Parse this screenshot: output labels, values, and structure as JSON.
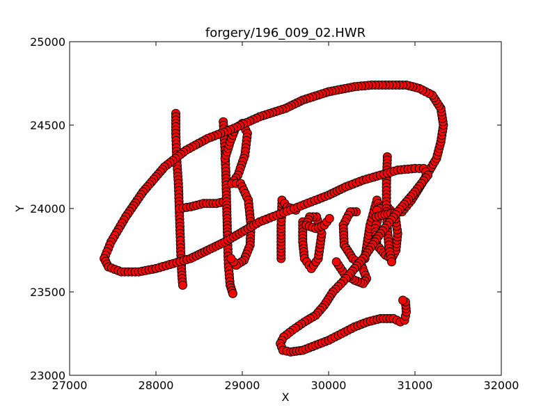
{
  "chart_data": {
    "type": "line",
    "title": "forgery/196_009_02.HWR",
    "xlabel": "X",
    "ylabel": "Y",
    "xlim": [
      27000,
      32000
    ],
    "ylim": [
      23000,
      25000
    ],
    "xticks": [
      "27000",
      "28000",
      "29000",
      "30000",
      "31000",
      "32000"
    ],
    "yticks": [
      "23000",
      "23500",
      "24000",
      "24500",
      "25000"
    ],
    "grid": false,
    "legend": "none",
    "series": [
      {
        "line_color": "#ff0000",
        "marker_face": "#ff0000",
        "marker_edge": "#000000",
        "marker": "circle",
        "strokes": [
          [
            [
              28230,
              24570
            ],
            [
              28230,
              24450
            ],
            [
              28240,
              24300
            ],
            [
              28260,
              24150
            ],
            [
              28270,
              24000
            ],
            [
              28280,
              23850
            ],
            [
              28290,
              23700
            ],
            [
              28300,
              23600
            ],
            [
              28310,
              23540
            ]
          ],
          [
            [
              28270,
              24000
            ],
            [
              28400,
              24010
            ],
            [
              28550,
              24030
            ],
            [
              28700,
              24030
            ],
            [
              28780,
              24040
            ]
          ],
          [
            [
              28780,
              24520
            ],
            [
              28800,
              24350
            ],
            [
              28810,
              24200
            ],
            [
              28820,
              24000
            ],
            [
              28830,
              23800
            ],
            [
              28840,
              23650
            ],
            [
              28860,
              23540
            ],
            [
              28890,
              23490
            ]
          ],
          [
            [
              28800,
              24300
            ],
            [
              28860,
              24400
            ],
            [
              28920,
              24480
            ],
            [
              29000,
              24510
            ],
            [
              29060,
              24450
            ],
            [
              29030,
              24320
            ],
            [
              28950,
              24200
            ],
            [
              28880,
              24150
            ],
            [
              28980,
              24150
            ],
            [
              29070,
              24050
            ],
            [
              29100,
              23900
            ],
            [
              29090,
              23780
            ],
            [
              29020,
              23690
            ],
            [
              28930,
              23660
            ],
            [
              28870,
              23700
            ]
          ],
          [
            [
              29450,
              23700
            ],
            [
              29450,
              23900
            ],
            [
              29460,
              24050
            ],
            [
              29520,
              24010
            ],
            [
              29620,
              23990
            ]
          ],
          [
            [
              29700,
              23920
            ],
            [
              29700,
              23800
            ],
            [
              29720,
              23700
            ],
            [
              29800,
              23640
            ],
            [
              29880,
              23700
            ],
            [
              29920,
              23850
            ],
            [
              29860,
              23950
            ],
            [
              29780,
              23950
            ],
            [
              29740,
              23900
            ],
            [
              29850,
              23880
            ],
            [
              29950,
              23900
            ],
            [
              30010,
              23940
            ]
          ],
          [
            [
              30320,
              23980
            ],
            [
              30250,
              23980
            ],
            [
              30170,
              23900
            ],
            [
              30180,
              23780
            ],
            [
              30280,
              23700
            ],
            [
              30380,
              23660
            ],
            [
              30440,
              23580
            ],
            [
              30400,
              23550
            ],
            [
              30300,
              23570
            ],
            [
              30180,
              23610
            ],
            [
              30090,
              23680
            ]
          ],
          [
            [
              30420,
              23700
            ],
            [
              30480,
              23900
            ],
            [
              30560,
              24050
            ],
            [
              30600,
              23990
            ],
            [
              30540,
              23880
            ],
            [
              30560,
              23780
            ],
            [
              30660,
              23720
            ],
            [
              30730,
              23700
            ],
            [
              30780,
              23750
            ],
            [
              30800,
              23850
            ],
            [
              30770,
              23960
            ],
            [
              30660,
              24020
            ],
            [
              30560,
              23990
            ]
          ],
          [
            [
              30680,
              24310
            ],
            [
              30670,
              24150
            ],
            [
              30670,
              24000
            ],
            [
              30680,
              23880
            ],
            [
              30700,
              23760
            ],
            [
              30730,
              23680
            ]
          ],
          [
            [
              30550,
              23950
            ],
            [
              30620,
              23960
            ],
            [
              30720,
              23970
            ],
            [
              30850,
              23980
            ],
            [
              30960,
              24050
            ],
            [
              31080,
              24150
            ],
            [
              31170,
              24230
            ],
            [
              31250,
              24300
            ],
            [
              31300,
              24400
            ],
            [
              31330,
              24500
            ],
            [
              31300,
              24600
            ],
            [
              31200,
              24680
            ],
            [
              31050,
              24720
            ],
            [
              30900,
              24740
            ],
            [
              30700,
              24740
            ],
            [
              30500,
              24740
            ],
            [
              30300,
              24730
            ],
            [
              30000,
              24700
            ],
            [
              29700,
              24650
            ],
            [
              29500,
              24600
            ],
            [
              29200,
              24550
            ],
            [
              28900,
              24480
            ],
            [
              28600,
              24420
            ],
            [
              28350,
              24350
            ],
            [
              28100,
              24250
            ],
            [
              27850,
              24100
            ],
            [
              27650,
              23950
            ],
            [
              27480,
              23800
            ],
            [
              27400,
              23700
            ],
            [
              27450,
              23650
            ],
            [
              27600,
              23620
            ],
            [
              27800,
              23620
            ],
            [
              28000,
              23640
            ],
            [
              28200,
              23670
            ],
            [
              28400,
              23700
            ],
            [
              28600,
              23750
            ],
            [
              28800,
              23800
            ],
            [
              29000,
              23860
            ],
            [
              29200,
              23920
            ],
            [
              29400,
              23960
            ],
            [
              29600,
              24000
            ],
            [
              29800,
              24040
            ],
            [
              30000,
              24080
            ],
            [
              30200,
              24130
            ],
            [
              30400,
              24170
            ],
            [
              30600,
              24200
            ],
            [
              30800,
              24230
            ],
            [
              31000,
              24240
            ],
            [
              31100,
              24240
            ],
            [
              31150,
              24200
            ],
            [
              31000,
              24100
            ],
            [
              30800,
              23980
            ],
            [
              30600,
              23850
            ],
            [
              30400,
              23700
            ],
            [
              30200,
              23580
            ],
            [
              30050,
              23500
            ],
            [
              29950,
              23420
            ],
            [
              29850,
              23360
            ],
            [
              29720,
              23320
            ],
            [
              29580,
              23270
            ],
            [
              29480,
              23230
            ],
            [
              29440,
              23190
            ],
            [
              29470,
              23150
            ],
            [
              29560,
              23140
            ],
            [
              29700,
              23150
            ],
            [
              29850,
              23180
            ],
            [
              30000,
              23210
            ],
            [
              30150,
              23250
            ],
            [
              30300,
              23290
            ],
            [
              30450,
              23320
            ],
            [
              30600,
              23340
            ],
            [
              30750,
              23340
            ],
            [
              30830,
              23320
            ],
            [
              30880,
              23330
            ],
            [
              30900,
              23380
            ],
            [
              30890,
              23440
            ],
            [
              30860,
              23450
            ]
          ]
        ]
      }
    ]
  }
}
